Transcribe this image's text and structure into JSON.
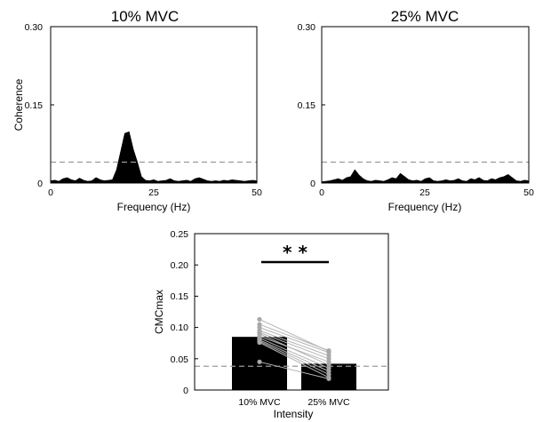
{
  "chart_data": [
    {
      "type": "area",
      "title": "10% MVC",
      "xlabel": "Frequency (Hz)",
      "ylabel": "Coherence",
      "xlim": [
        0,
        50
      ],
      "ylim": [
        0,
        0.3
      ],
      "xticks": [
        "0",
        "25",
        "50"
      ],
      "yticks": [
        "0",
        "0.15",
        "0.30"
      ],
      "threshold": 0.04,
      "x": [
        0,
        1,
        2,
        3,
        4,
        5,
        6,
        7,
        8,
        9,
        10,
        11,
        12,
        13,
        14,
        15,
        16,
        17,
        18,
        19,
        20,
        21,
        22,
        23,
        24,
        25,
        26,
        27,
        28,
        29,
        30,
        31,
        32,
        33,
        34,
        35,
        36,
        37,
        38,
        39,
        40,
        41,
        42,
        43,
        44,
        45,
        46,
        47,
        48,
        49,
        50
      ],
      "series": [
        {
          "values": [
            0.004,
            0.005,
            0.003,
            0.008,
            0.01,
            0.006,
            0.004,
            0.009,
            0.005,
            0.003,
            0.004,
            0.01,
            0.006,
            0.004,
            0.005,
            0.006,
            0.025,
            0.06,
            0.095,
            0.098,
            0.065,
            0.04,
            0.012,
            0.005,
            0.004,
            0.006,
            0.003,
            0.004,
            0.005,
            0.008,
            0.004,
            0.003,
            0.004,
            0.005,
            0.003,
            0.008,
            0.01,
            0.007,
            0.004,
            0.003,
            0.004,
            0.003,
            0.005,
            0.004,
            0.006,
            0.005,
            0.004,
            0.003,
            0.004,
            0.005,
            0.004
          ]
        }
      ]
    },
    {
      "type": "area",
      "title": "25% MVC",
      "xlabel": "Frequency (Hz)",
      "ylabel": "",
      "xlim": [
        0,
        50
      ],
      "ylim": [
        0,
        0.3
      ],
      "xticks": [
        "0",
        "25",
        "50"
      ],
      "yticks": [
        "0",
        "0.15",
        "0.30"
      ],
      "threshold": 0.04,
      "x": [
        0,
        1,
        2,
        3,
        4,
        5,
        6,
        7,
        8,
        9,
        10,
        11,
        12,
        13,
        14,
        15,
        16,
        17,
        18,
        19,
        20,
        21,
        22,
        23,
        24,
        25,
        26,
        27,
        28,
        29,
        30,
        31,
        32,
        33,
        34,
        35,
        36,
        37,
        38,
        39,
        40,
        41,
        42,
        43,
        44,
        45,
        46,
        47,
        48,
        49,
        50
      ],
      "series": [
        {
          "values": [
            0.002,
            0.003,
            0.004,
            0.006,
            0.008,
            0.005,
            0.01,
            0.012,
            0.025,
            0.015,
            0.008,
            0.004,
            0.003,
            0.005,
            0.004,
            0.003,
            0.006,
            0.01,
            0.008,
            0.018,
            0.012,
            0.006,
            0.004,
            0.005,
            0.003,
            0.008,
            0.01,
            0.004,
            0.003,
            0.004,
            0.006,
            0.004,
            0.005,
            0.008,
            0.004,
            0.003,
            0.008,
            0.006,
            0.01,
            0.005,
            0.004,
            0.008,
            0.006,
            0.01,
            0.012,
            0.016,
            0.01,
            0.004,
            0.003,
            0.005,
            0.004
          ]
        }
      ]
    },
    {
      "type": "bar",
      "title": "",
      "xlabel": "Intensity",
      "ylabel": "CMCmax",
      "categories": [
        "10% MVC",
        "25% MVC"
      ],
      "values": [
        0.085,
        0.042
      ],
      "ylim": [
        0,
        0.25
      ],
      "yticks": [
        "0",
        "0.05",
        "0.10",
        "0.15",
        "0.20",
        "0.25"
      ],
      "threshold": 0.038,
      "significance": "* *",
      "paired": [
        [
          0.113,
          0.062
        ],
        [
          0.105,
          0.063
        ],
        [
          0.1,
          0.06
        ],
        [
          0.095,
          0.055
        ],
        [
          0.092,
          0.05
        ],
        [
          0.09,
          0.04
        ],
        [
          0.086,
          0.045
        ],
        [
          0.083,
          0.035
        ],
        [
          0.08,
          0.03
        ],
        [
          0.078,
          0.025
        ],
        [
          0.076,
          0.02
        ],
        [
          0.045,
          0.018
        ]
      ]
    }
  ]
}
